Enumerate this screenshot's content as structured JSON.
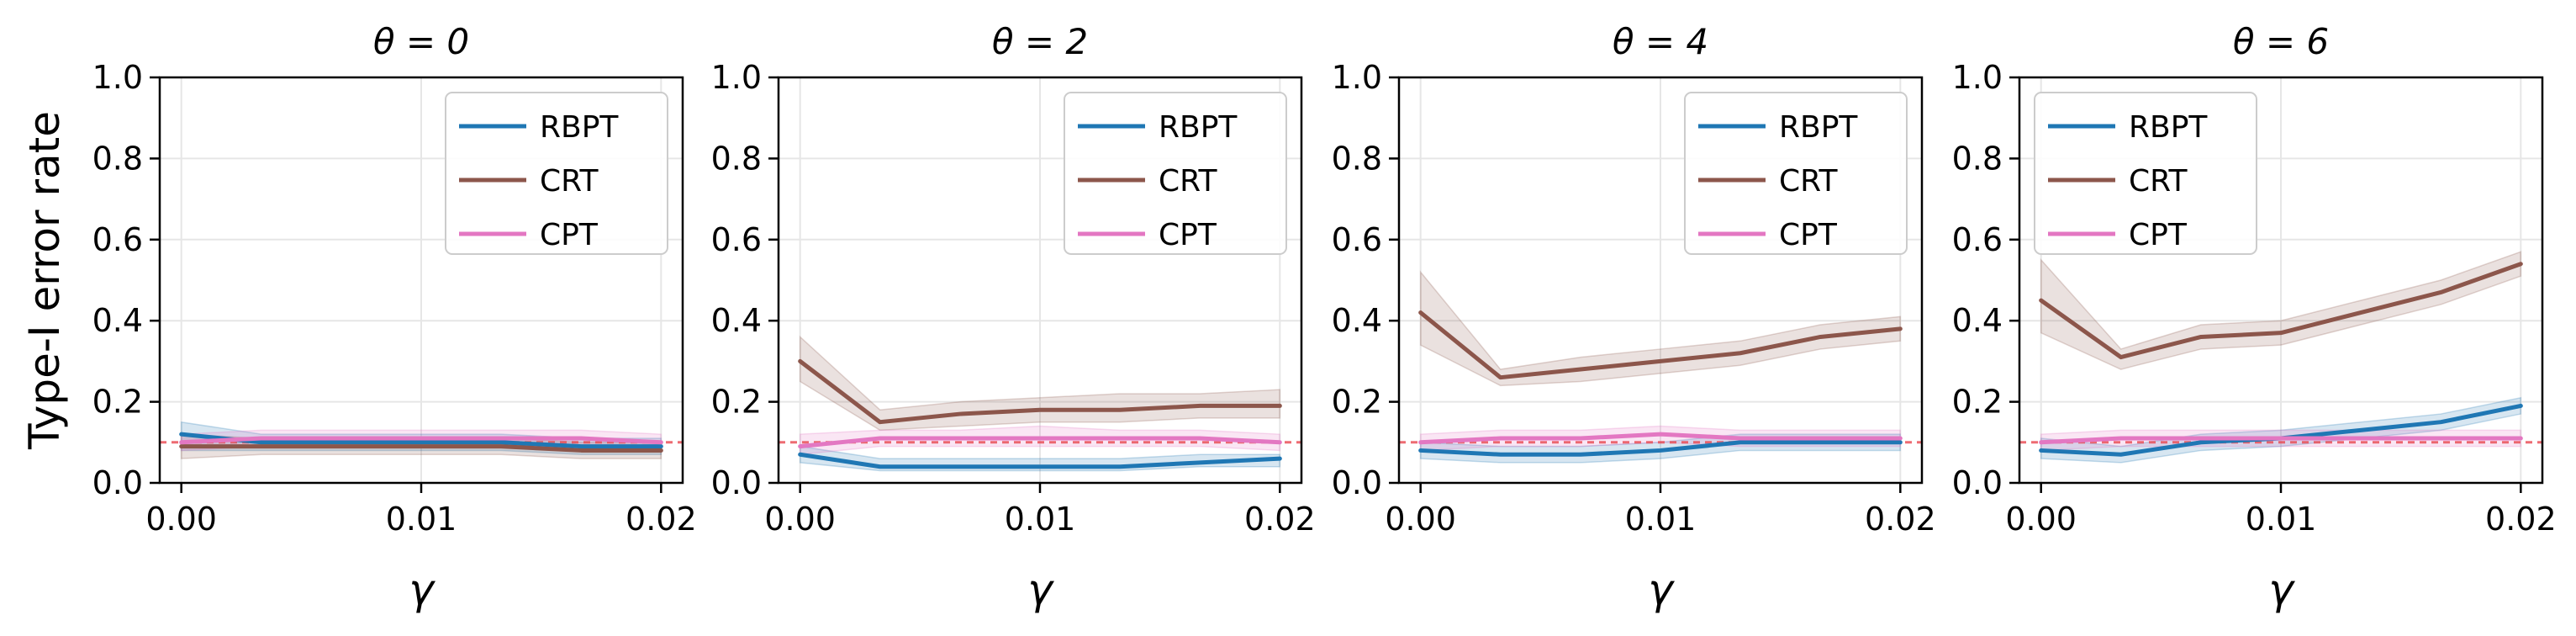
{
  "colors": {
    "RBPT": "#1f77b4",
    "CRT": "#8c564b",
    "CPT": "#e377c2",
    "reference": "#e8474f"
  },
  "chart_data": [
    {
      "type": "line",
      "title": "θ = 0",
      "xlabel": "γ",
      "ylabel": "Type-I error rate",
      "xlim": [
        -0.0009,
        0.0209
      ],
      "ylim": [
        0,
        1
      ],
      "xticks": [
        0.0,
        0.01,
        0.02
      ],
      "xtick_labels": [
        "0.00",
        "0.01",
        "0.02"
      ],
      "yticks": [
        0,
        0.2,
        0.4,
        0.6,
        0.8,
        1.0
      ],
      "ytick_labels": [
        "0.0",
        "0.2",
        "0.4",
        "0.6",
        "0.8",
        "1.0"
      ],
      "grid": true,
      "legend_position": "top-right",
      "reference_line": 0.1,
      "x": [
        0.0,
        0.00333,
        0.00667,
        0.01,
        0.01333,
        0.01667,
        0.02
      ],
      "series": [
        {
          "name": "RBPT",
          "color_key": "RBPT",
          "values": [
            0.12,
            0.1,
            0.1,
            0.1,
            0.1,
            0.09,
            0.09
          ],
          "lower": [
            0.08,
            0.08,
            0.08,
            0.08,
            0.08,
            0.07,
            0.07
          ],
          "upper": [
            0.15,
            0.12,
            0.12,
            0.12,
            0.12,
            0.11,
            0.11
          ]
        },
        {
          "name": "CRT",
          "color_key": "CRT",
          "values": [
            0.09,
            0.09,
            0.09,
            0.09,
            0.09,
            0.08,
            0.08
          ],
          "lower": [
            0.06,
            0.07,
            0.07,
            0.07,
            0.07,
            0.06,
            0.06
          ],
          "upper": [
            0.12,
            0.11,
            0.11,
            0.11,
            0.11,
            0.1,
            0.1
          ]
        },
        {
          "name": "CPT",
          "color_key": "CPT",
          "values": [
            0.1,
            0.11,
            0.11,
            0.11,
            0.11,
            0.11,
            0.1
          ],
          "lower": [
            0.08,
            0.09,
            0.09,
            0.09,
            0.09,
            0.09,
            0.08
          ],
          "upper": [
            0.12,
            0.13,
            0.13,
            0.13,
            0.13,
            0.13,
            0.12
          ]
        }
      ]
    },
    {
      "type": "line",
      "title": "θ = 2",
      "xlabel": "γ",
      "ylabel": "",
      "xlim": [
        -0.0009,
        0.0209
      ],
      "ylim": [
        0,
        1
      ],
      "xticks": [
        0.0,
        0.01,
        0.02
      ],
      "xtick_labels": [
        "0.00",
        "0.01",
        "0.02"
      ],
      "yticks": [
        0,
        0.2,
        0.4,
        0.6,
        0.8,
        1.0
      ],
      "ytick_labels": [
        "0.0",
        "0.2",
        "0.4",
        "0.6",
        "0.8",
        "1.0"
      ],
      "grid": true,
      "legend_position": "top-right",
      "reference_line": 0.1,
      "x": [
        0.0,
        0.00333,
        0.00667,
        0.01,
        0.01333,
        0.01667,
        0.02
      ],
      "series": [
        {
          "name": "RBPT",
          "color_key": "RBPT",
          "values": [
            0.07,
            0.04,
            0.04,
            0.04,
            0.04,
            0.05,
            0.06
          ],
          "lower": [
            0.05,
            0.03,
            0.03,
            0.03,
            0.03,
            0.04,
            0.04
          ],
          "upper": [
            0.09,
            0.06,
            0.06,
            0.06,
            0.06,
            0.07,
            0.07
          ]
        },
        {
          "name": "CRT",
          "color_key": "CRT",
          "values": [
            0.3,
            0.15,
            0.17,
            0.18,
            0.18,
            0.19,
            0.19
          ],
          "lower": [
            0.25,
            0.13,
            0.14,
            0.15,
            0.15,
            0.16,
            0.16
          ],
          "upper": [
            0.36,
            0.18,
            0.2,
            0.21,
            0.22,
            0.22,
            0.23
          ]
        },
        {
          "name": "CPT",
          "color_key": "CPT",
          "values": [
            0.09,
            0.11,
            0.11,
            0.11,
            0.11,
            0.11,
            0.1
          ],
          "lower": [
            0.07,
            0.09,
            0.09,
            0.09,
            0.09,
            0.09,
            0.08
          ],
          "upper": [
            0.12,
            0.13,
            0.13,
            0.14,
            0.13,
            0.13,
            0.12
          ]
        }
      ]
    },
    {
      "type": "line",
      "title": "θ = 4",
      "xlabel": "γ",
      "ylabel": "",
      "xlim": [
        -0.0009,
        0.0209
      ],
      "ylim": [
        0,
        1
      ],
      "xticks": [
        0.0,
        0.01,
        0.02
      ],
      "xtick_labels": [
        "0.00",
        "0.01",
        "0.02"
      ],
      "yticks": [
        0,
        0.2,
        0.4,
        0.6,
        0.8,
        1.0
      ],
      "ytick_labels": [
        "0.0",
        "0.2",
        "0.4",
        "0.6",
        "0.8",
        "1.0"
      ],
      "grid": true,
      "legend_position": "top-right",
      "reference_line": 0.1,
      "x": [
        0.0,
        0.00333,
        0.00667,
        0.01,
        0.01333,
        0.01667,
        0.02
      ],
      "series": [
        {
          "name": "RBPT",
          "color_key": "RBPT",
          "values": [
            0.08,
            0.07,
            0.07,
            0.08,
            0.1,
            0.1,
            0.1
          ],
          "lower": [
            0.06,
            0.05,
            0.05,
            0.06,
            0.08,
            0.08,
            0.08
          ],
          "upper": [
            0.1,
            0.09,
            0.09,
            0.1,
            0.12,
            0.12,
            0.12
          ]
        },
        {
          "name": "CRT",
          "color_key": "CRT",
          "values": [
            0.42,
            0.26,
            0.28,
            0.3,
            0.32,
            0.36,
            0.38
          ],
          "lower": [
            0.34,
            0.24,
            0.25,
            0.27,
            0.29,
            0.33,
            0.35
          ],
          "upper": [
            0.52,
            0.28,
            0.31,
            0.33,
            0.35,
            0.39,
            0.41
          ]
        },
        {
          "name": "CPT",
          "color_key": "CPT",
          "values": [
            0.1,
            0.11,
            0.11,
            0.12,
            0.11,
            0.11,
            0.11
          ],
          "lower": [
            0.08,
            0.09,
            0.09,
            0.1,
            0.09,
            0.09,
            0.09
          ],
          "upper": [
            0.12,
            0.13,
            0.13,
            0.14,
            0.13,
            0.13,
            0.13
          ]
        }
      ]
    },
    {
      "type": "line",
      "title": "θ = 6",
      "xlabel": "γ",
      "ylabel": "",
      "xlim": [
        -0.0009,
        0.0209
      ],
      "ylim": [
        0,
        1
      ],
      "xticks": [
        0.0,
        0.01,
        0.02
      ],
      "xtick_labels": [
        "0.00",
        "0.01",
        "0.02"
      ],
      "yticks": [
        0,
        0.2,
        0.4,
        0.6,
        0.8,
        1.0
      ],
      "ytick_labels": [
        "0.0",
        "0.2",
        "0.4",
        "0.6",
        "0.8",
        "1.0"
      ],
      "grid": true,
      "legend_position": "top-left",
      "reference_line": 0.1,
      "x": [
        0.0,
        0.00333,
        0.00667,
        0.01,
        0.01333,
        0.01667,
        0.02
      ],
      "series": [
        {
          "name": "RBPT",
          "color_key": "RBPT",
          "values": [
            0.08,
            0.07,
            0.1,
            0.11,
            0.13,
            0.15,
            0.19
          ],
          "lower": [
            0.06,
            0.05,
            0.08,
            0.09,
            0.11,
            0.13,
            0.17
          ],
          "upper": [
            0.11,
            0.09,
            0.12,
            0.13,
            0.15,
            0.17,
            0.21
          ]
        },
        {
          "name": "CRT",
          "color_key": "CRT",
          "values": [
            0.45,
            0.31,
            0.36,
            0.37,
            0.42,
            0.47,
            0.54
          ],
          "lower": [
            0.37,
            0.28,
            0.33,
            0.34,
            0.39,
            0.44,
            0.51
          ],
          "upper": [
            0.55,
            0.33,
            0.39,
            0.4,
            0.45,
            0.5,
            0.57
          ]
        },
        {
          "name": "CPT",
          "color_key": "CPT",
          "values": [
            0.1,
            0.11,
            0.11,
            0.11,
            0.11,
            0.11,
            0.11
          ],
          "lower": [
            0.08,
            0.09,
            0.09,
            0.09,
            0.09,
            0.09,
            0.09
          ],
          "upper": [
            0.12,
            0.13,
            0.13,
            0.13,
            0.13,
            0.13,
            0.13
          ]
        }
      ]
    }
  ]
}
